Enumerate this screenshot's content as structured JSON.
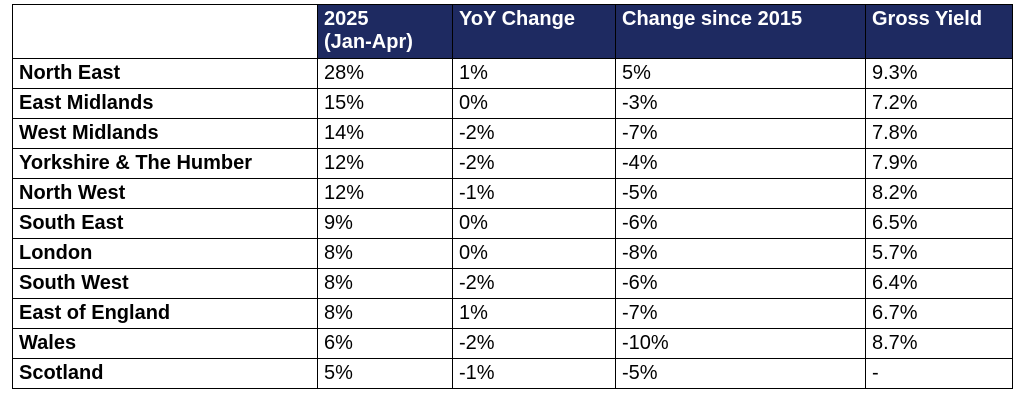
{
  "table": {
    "headers": [
      "",
      "2025 (Jan-Apr)",
      "YoY Change",
      "Change since 2015",
      "Gross Yield"
    ],
    "header_lines": {
      "col1_line1": "2025",
      "col1_line2": "(Jan-Apr)"
    },
    "rows": [
      {
        "region": "North East",
        "share_2025": "28%",
        "yoy_change": "1%",
        "change_since_2015": "5%",
        "gross_yield": "9.3%"
      },
      {
        "region": "East Midlands",
        "share_2025": "15%",
        "yoy_change": "0%",
        "change_since_2015": "-3%",
        "gross_yield": "7.2%"
      },
      {
        "region": "West Midlands",
        "share_2025": "14%",
        "yoy_change": "-2%",
        "change_since_2015": "-7%",
        "gross_yield": "7.8%"
      },
      {
        "region": "Yorkshire & The Humber",
        "share_2025": "12%",
        "yoy_change": "-2%",
        "change_since_2015": "-4%",
        "gross_yield": "7.9%"
      },
      {
        "region": "North West",
        "share_2025": "12%",
        "yoy_change": "-1%",
        "change_since_2015": "-5%",
        "gross_yield": "8.2%"
      },
      {
        "region": "South East",
        "share_2025": "9%",
        "yoy_change": "0%",
        "change_since_2015": "-6%",
        "gross_yield": "6.5%"
      },
      {
        "region": "London",
        "share_2025": "8%",
        "yoy_change": "0%",
        "change_since_2015": "-8%",
        "gross_yield": "5.7%"
      },
      {
        "region": "South West",
        "share_2025": "8%",
        "yoy_change": "-2%",
        "change_since_2015": "-6%",
        "gross_yield": "6.4%"
      },
      {
        "region": "East of England",
        "share_2025": "8%",
        "yoy_change": "1%",
        "change_since_2015": "-7%",
        "gross_yield": "6.7%"
      },
      {
        "region": "Wales",
        "share_2025": "6%",
        "yoy_change": "-2%",
        "change_since_2015": "-10%",
        "gross_yield": "8.7%"
      },
      {
        "region": "Scotland",
        "share_2025": "5%",
        "yoy_change": "-1%",
        "change_since_2015": "-5%",
        "gross_yield": "-"
      }
    ]
  },
  "colors": {
    "header_background": "#1e2a61",
    "header_text": "#ffffff",
    "border": "#000000"
  }
}
